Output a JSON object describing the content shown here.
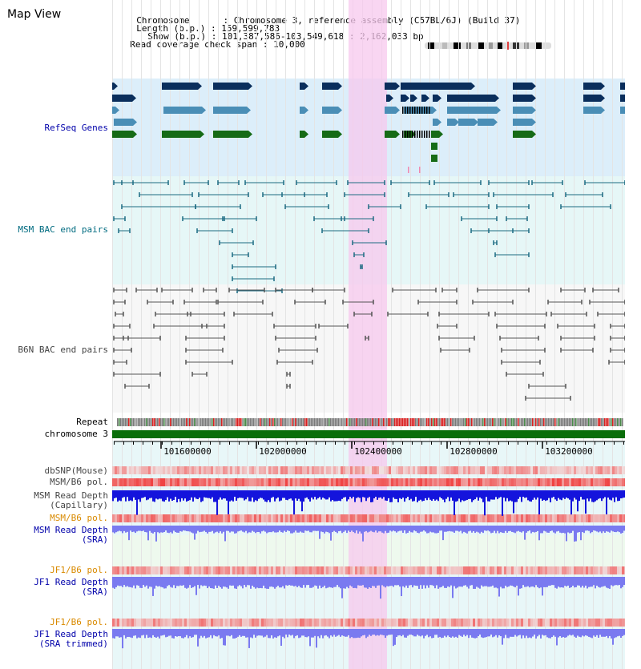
{
  "title": "Map View",
  "info": {
    "chromosome_label": "Chromosome",
    "chromosome_value": ": Chromosome 3, reference assembly (C57BL/6J) (Build 37)",
    "length_label": "Length (b.p.)",
    "length_value": ": 159,599,783",
    "show_label": "Show (b.p.)",
    "show_value": ": 101,387,586-103,549,618 : 2,162,033 bp",
    "coverage_label": "Read coverage check span",
    "coverage_value": ": 10,000"
  },
  "labels": {
    "refseq": "RefSeq Genes",
    "msm_bac": "MSM BAC end pairs",
    "b6n_bac": "B6N BAC end pairs",
    "repeat": "Repeat",
    "chrom": "chromosome 3",
    "dbsnp": "dbSNP(Mouse)",
    "msm_pol": "MSM/B6 pol.",
    "msm_depth_cap_1": "MSM Read Depth",
    "msm_depth_cap_2": "(Capillary)",
    "msm_pol_sra": "MSM/B6 pol.",
    "msm_depth_sra_1": "MSM Read Depth",
    "msm_depth_sra_2": "(SRA)",
    "jf1_pol": "JF1/B6 pol.",
    "jf1_depth_1": "JF1 Read Depth",
    "jf1_depth_2": "(SRA)",
    "jf1_pol_trim": "JF1/B6 pol.",
    "jf1_depth_trim_1": "JF1 Read Depth",
    "jf1_depth_trim_2": "(SRA trimmed)"
  },
  "ruler_ticks": [
    "101600000",
    "102000000",
    "102400000",
    "102800000",
    "103200000"
  ],
  "colors": {
    "refseq_bg": "#dceefa",
    "bac_bg": "#e6f7f7",
    "b6n_bg": "#f7f7f7",
    "highlight": "#f7c8ee",
    "gene_dark": "#0a2e5c",
    "gene_mid": "#4a8eb6",
    "gene_green": "#166b16",
    "msm_pair": "#1c6b82",
    "b6n_pair": "#555555",
    "chrom_bar": "#0a6e0a",
    "depth_blue": "#1414dc",
    "depth_light": "#7a7af0",
    "label_blue": "#0000aa",
    "label_teal": "#006b80",
    "label_gray": "#444444",
    "label_orange": "#d98a00"
  }
}
